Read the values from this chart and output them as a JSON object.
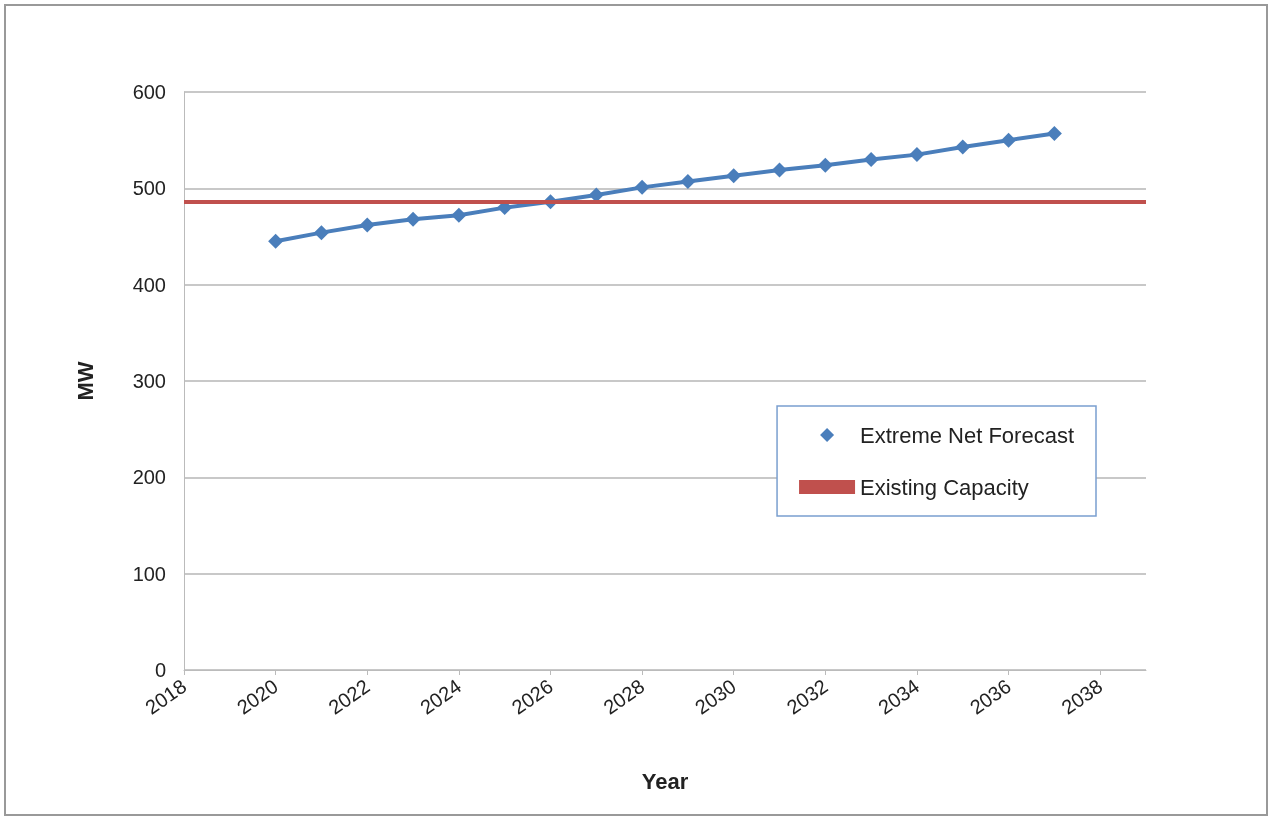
{
  "chart_data": {
    "type": "line",
    "xlabel": "Year",
    "ylabel": "MW",
    "x": [
      2020,
      2021,
      2022,
      2023,
      2024,
      2025,
      2026,
      2027,
      2028,
      2029,
      2030,
      2031,
      2032,
      2033,
      2034,
      2035,
      2036,
      2037
    ],
    "series": [
      {
        "name": "Extreme Net Forecast",
        "color": "#4a7ebb",
        "marker": "diamond",
        "values": [
          445,
          454,
          462,
          468,
          472,
          480,
          486,
          493,
          501,
          507,
          513,
          519,
          524,
          530,
          535,
          543,
          550,
          557
        ]
      }
    ],
    "ref_lines": [
      {
        "axis": "y",
        "value": 486,
        "label": "Existing Capacity",
        "color": "#c0504d"
      }
    ],
    "xlim": [
      2018,
      2039
    ],
    "xticks": [
      2018,
      2020,
      2022,
      2024,
      2026,
      2028,
      2030,
      2032,
      2034,
      2036,
      2038
    ],
    "ylim": [
      0,
      600
    ],
    "yticks": [
      0,
      100,
      200,
      300,
      400,
      500,
      600
    ],
    "grid": "y",
    "legend": "right",
    "line_style": "solid"
  }
}
